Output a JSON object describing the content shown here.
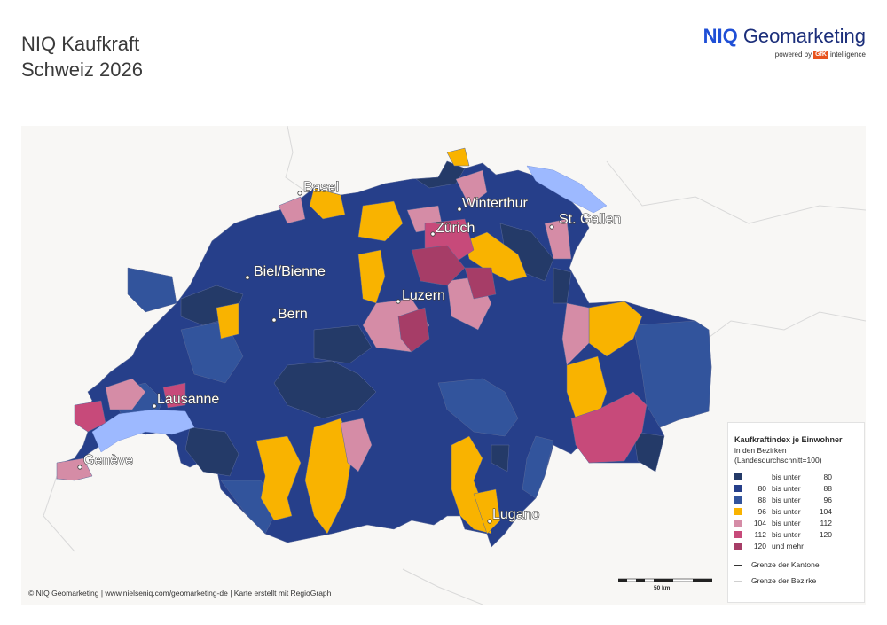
{
  "header": {
    "title_line1": "NIQ Kaufkraft",
    "title_line2": "Schweiz 2026"
  },
  "logo": {
    "brand_bold": "NIQ",
    "brand_rest": "Geomarketing",
    "powered_by": "powered by",
    "gfk": "GfK",
    "intelligence": "intelligence"
  },
  "colors": {
    "c1": "#243a68",
    "c2": "#263f8a",
    "c3": "#32549c",
    "c4": "#f9b300",
    "c5": "#d58ca6",
    "c6": "#c74a7a",
    "c7": "#a63d67",
    "lake": "#9db9ff",
    "land_bg": "#f8f7f5"
  },
  "cities": [
    {
      "name": "Basel"
    },
    {
      "name": "Winterthur"
    },
    {
      "name": "Zürich"
    },
    {
      "name": "St. Gallen"
    },
    {
      "name": "Biel/Bienne"
    },
    {
      "name": "Luzern"
    },
    {
      "name": "Bern"
    },
    {
      "name": "Lausanne"
    },
    {
      "name": "Genève"
    },
    {
      "name": "Lugano"
    }
  ],
  "legend": {
    "title": "Kaufkraftindex je Einwohner",
    "sub1": "in den Bezirken",
    "sub2": "(Landesdurchschnitt=100)",
    "classes": [
      {
        "from": "",
        "label": "bis unter",
        "to": "80"
      },
      {
        "from": "80",
        "label": "bis unter",
        "to": "88"
      },
      {
        "from": "88",
        "label": "bis unter",
        "to": "96"
      },
      {
        "from": "96",
        "label": "bis unter",
        "to": "104"
      },
      {
        "from": "104",
        "label": "bis unter",
        "to": "112"
      },
      {
        "from": "112",
        "label": "bis unter",
        "to": "120"
      },
      {
        "from": "120",
        "label": "und mehr",
        "to": ""
      }
    ],
    "line_kantone": "Grenze der Kantone",
    "line_bezirke": "Grenze der Bezirke"
  },
  "scale": {
    "label": "50 km"
  },
  "footer": {
    "credit": "© NIQ Geomarketing | www.nielseniq.com/geomarketing-de | Karte erstellt mit RegioGraph"
  }
}
